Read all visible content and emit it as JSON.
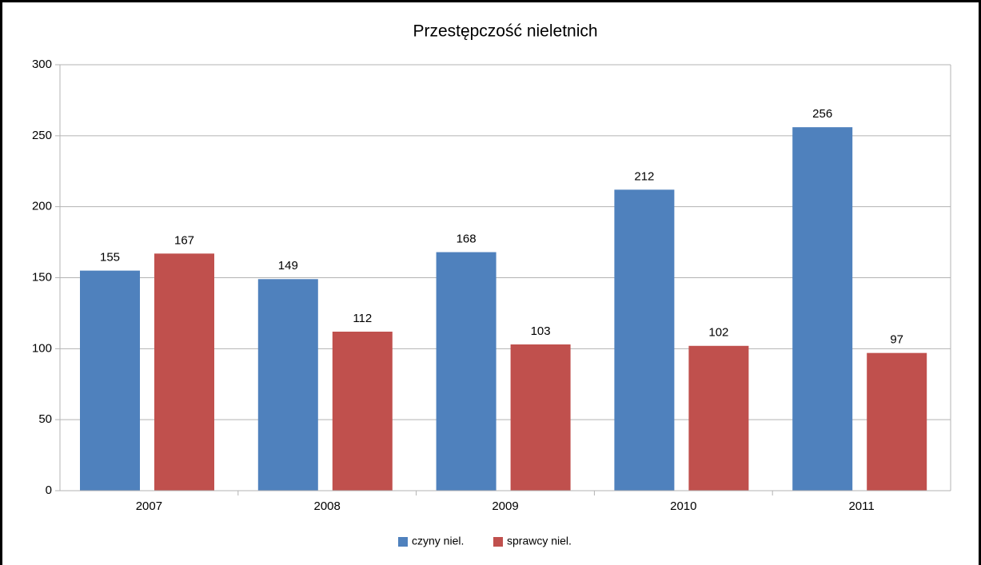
{
  "chart_data": {
    "type": "bar",
    "title": "Przestępczość nieletnich",
    "categories": [
      "2007",
      "2008",
      "2009",
      "2010",
      "2011"
    ],
    "series": [
      {
        "name": "czyny niel.",
        "color": "#4f81bd",
        "values": [
          155,
          149,
          168,
          212,
          256
        ]
      },
      {
        "name": "sprawcy niel.",
        "color": "#c0504d",
        "values": [
          167,
          112,
          103,
          102,
          97
        ]
      }
    ],
    "ylim": [
      0,
      300
    ],
    "yticks": [
      0,
      50,
      100,
      150,
      200,
      250,
      300
    ],
    "grid": true,
    "legend": "bottom"
  }
}
